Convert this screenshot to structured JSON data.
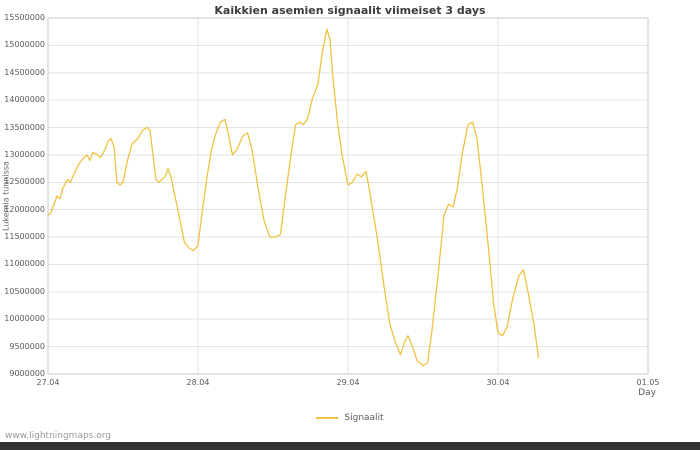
{
  "title": "Kaikkien asemien signaalit viimeiset 3 days",
  "footer": {
    "link_text": "www.lightningmaps.org"
  },
  "legend": {
    "label": "Signaalit"
  },
  "chart_data": {
    "type": "line",
    "title": "Kaikkien asemien signaalit viimeiset 3 days",
    "xlabel": "Day",
    "ylabel": "Lukemia tunnissa",
    "legend_position": "bottom-center",
    "grid": true,
    "line_color": "#f0c241",
    "grid_color": "#e3e3e3",
    "border_color": "#c8c8c8",
    "ylim": [
      9000000,
      15500000
    ],
    "y_tick_step": 500000,
    "x_ticks": [
      "27.04",
      "28.04",
      "29.04",
      "30.04",
      "01.05"
    ],
    "x_range_days": [
      0,
      4
    ],
    "series": [
      {
        "name": "Signaalit",
        "points": [
          [
            0.0,
            11900000
          ],
          [
            0.02,
            11950000
          ],
          [
            0.04,
            12100000
          ],
          [
            0.06,
            12250000
          ],
          [
            0.08,
            12200000
          ],
          [
            0.1,
            12400000
          ],
          [
            0.13,
            12550000
          ],
          [
            0.15,
            12500000
          ],
          [
            0.18,
            12700000
          ],
          [
            0.21,
            12850000
          ],
          [
            0.24,
            12950000
          ],
          [
            0.26,
            13000000
          ],
          [
            0.28,
            12900000
          ],
          [
            0.3,
            13050000
          ],
          [
            0.33,
            13000000
          ],
          [
            0.35,
            12950000
          ],
          [
            0.38,
            13100000
          ],
          [
            0.4,
            13250000
          ],
          [
            0.42,
            13300000
          ],
          [
            0.44,
            13150000
          ],
          [
            0.46,
            12500000
          ],
          [
            0.48,
            12450000
          ],
          [
            0.5,
            12500000
          ],
          [
            0.53,
            12900000
          ],
          [
            0.56,
            13200000
          ],
          [
            0.6,
            13300000
          ],
          [
            0.63,
            13450000
          ],
          [
            0.66,
            13500000
          ],
          [
            0.68,
            13450000
          ],
          [
            0.7,
            13000000
          ],
          [
            0.72,
            12550000
          ],
          [
            0.74,
            12500000
          ],
          [
            0.76,
            12550000
          ],
          [
            0.78,
            12600000
          ],
          [
            0.8,
            12750000
          ],
          [
            0.82,
            12600000
          ],
          [
            0.85,
            12200000
          ],
          [
            0.88,
            11800000
          ],
          [
            0.91,
            11400000
          ],
          [
            0.94,
            11300000
          ],
          [
            0.97,
            11250000
          ],
          [
            1.0,
            11350000
          ],
          [
            1.03,
            12000000
          ],
          [
            1.06,
            12600000
          ],
          [
            1.09,
            13100000
          ],
          [
            1.12,
            13400000
          ],
          [
            1.15,
            13600000
          ],
          [
            1.18,
            13650000
          ],
          [
            1.2,
            13400000
          ],
          [
            1.23,
            13000000
          ],
          [
            1.26,
            13100000
          ],
          [
            1.3,
            13350000
          ],
          [
            1.33,
            13400000
          ],
          [
            1.36,
            13100000
          ],
          [
            1.4,
            12400000
          ],
          [
            1.44,
            11800000
          ],
          [
            1.48,
            11500000
          ],
          [
            1.52,
            11500000
          ],
          [
            1.55,
            11550000
          ],
          [
            1.58,
            12200000
          ],
          [
            1.62,
            13000000
          ],
          [
            1.65,
            13550000
          ],
          [
            1.68,
            13600000
          ],
          [
            1.7,
            13550000
          ],
          [
            1.73,
            13650000
          ],
          [
            1.76,
            14000000
          ],
          [
            1.8,
            14300000
          ],
          [
            1.83,
            14900000
          ],
          [
            1.86,
            15300000
          ],
          [
            1.88,
            15100000
          ],
          [
            1.9,
            14400000
          ],
          [
            1.93,
            13600000
          ],
          [
            1.96,
            13000000
          ],
          [
            2.0,
            12450000
          ],
          [
            2.03,
            12500000
          ],
          [
            2.06,
            12650000
          ],
          [
            2.09,
            12600000
          ],
          [
            2.12,
            12700000
          ],
          [
            2.14,
            12400000
          ],
          [
            2.17,
            11900000
          ],
          [
            2.2,
            11400000
          ],
          [
            2.24,
            10600000
          ],
          [
            2.28,
            9900000
          ],
          [
            2.32,
            9550000
          ],
          [
            2.35,
            9350000
          ],
          [
            2.38,
            9600000
          ],
          [
            2.4,
            9700000
          ],
          [
            2.43,
            9500000
          ],
          [
            2.46,
            9250000
          ],
          [
            2.5,
            9150000
          ],
          [
            2.53,
            9200000
          ],
          [
            2.56,
            9800000
          ],
          [
            2.6,
            10800000
          ],
          [
            2.64,
            11900000
          ],
          [
            2.67,
            12100000
          ],
          [
            2.7,
            12050000
          ],
          [
            2.73,
            12400000
          ],
          [
            2.76,
            13000000
          ],
          [
            2.8,
            13550000
          ],
          [
            2.83,
            13600000
          ],
          [
            2.86,
            13300000
          ],
          [
            2.9,
            12300000
          ],
          [
            2.94,
            11200000
          ],
          [
            2.97,
            10300000
          ],
          [
            3.0,
            9750000
          ],
          [
            3.03,
            9700000
          ],
          [
            3.06,
            9850000
          ],
          [
            3.1,
            10400000
          ],
          [
            3.14,
            10800000
          ],
          [
            3.17,
            10900000
          ],
          [
            3.2,
            10500000
          ],
          [
            3.24,
            9900000
          ],
          [
            3.27,
            9300000
          ]
        ]
      }
    ]
  }
}
